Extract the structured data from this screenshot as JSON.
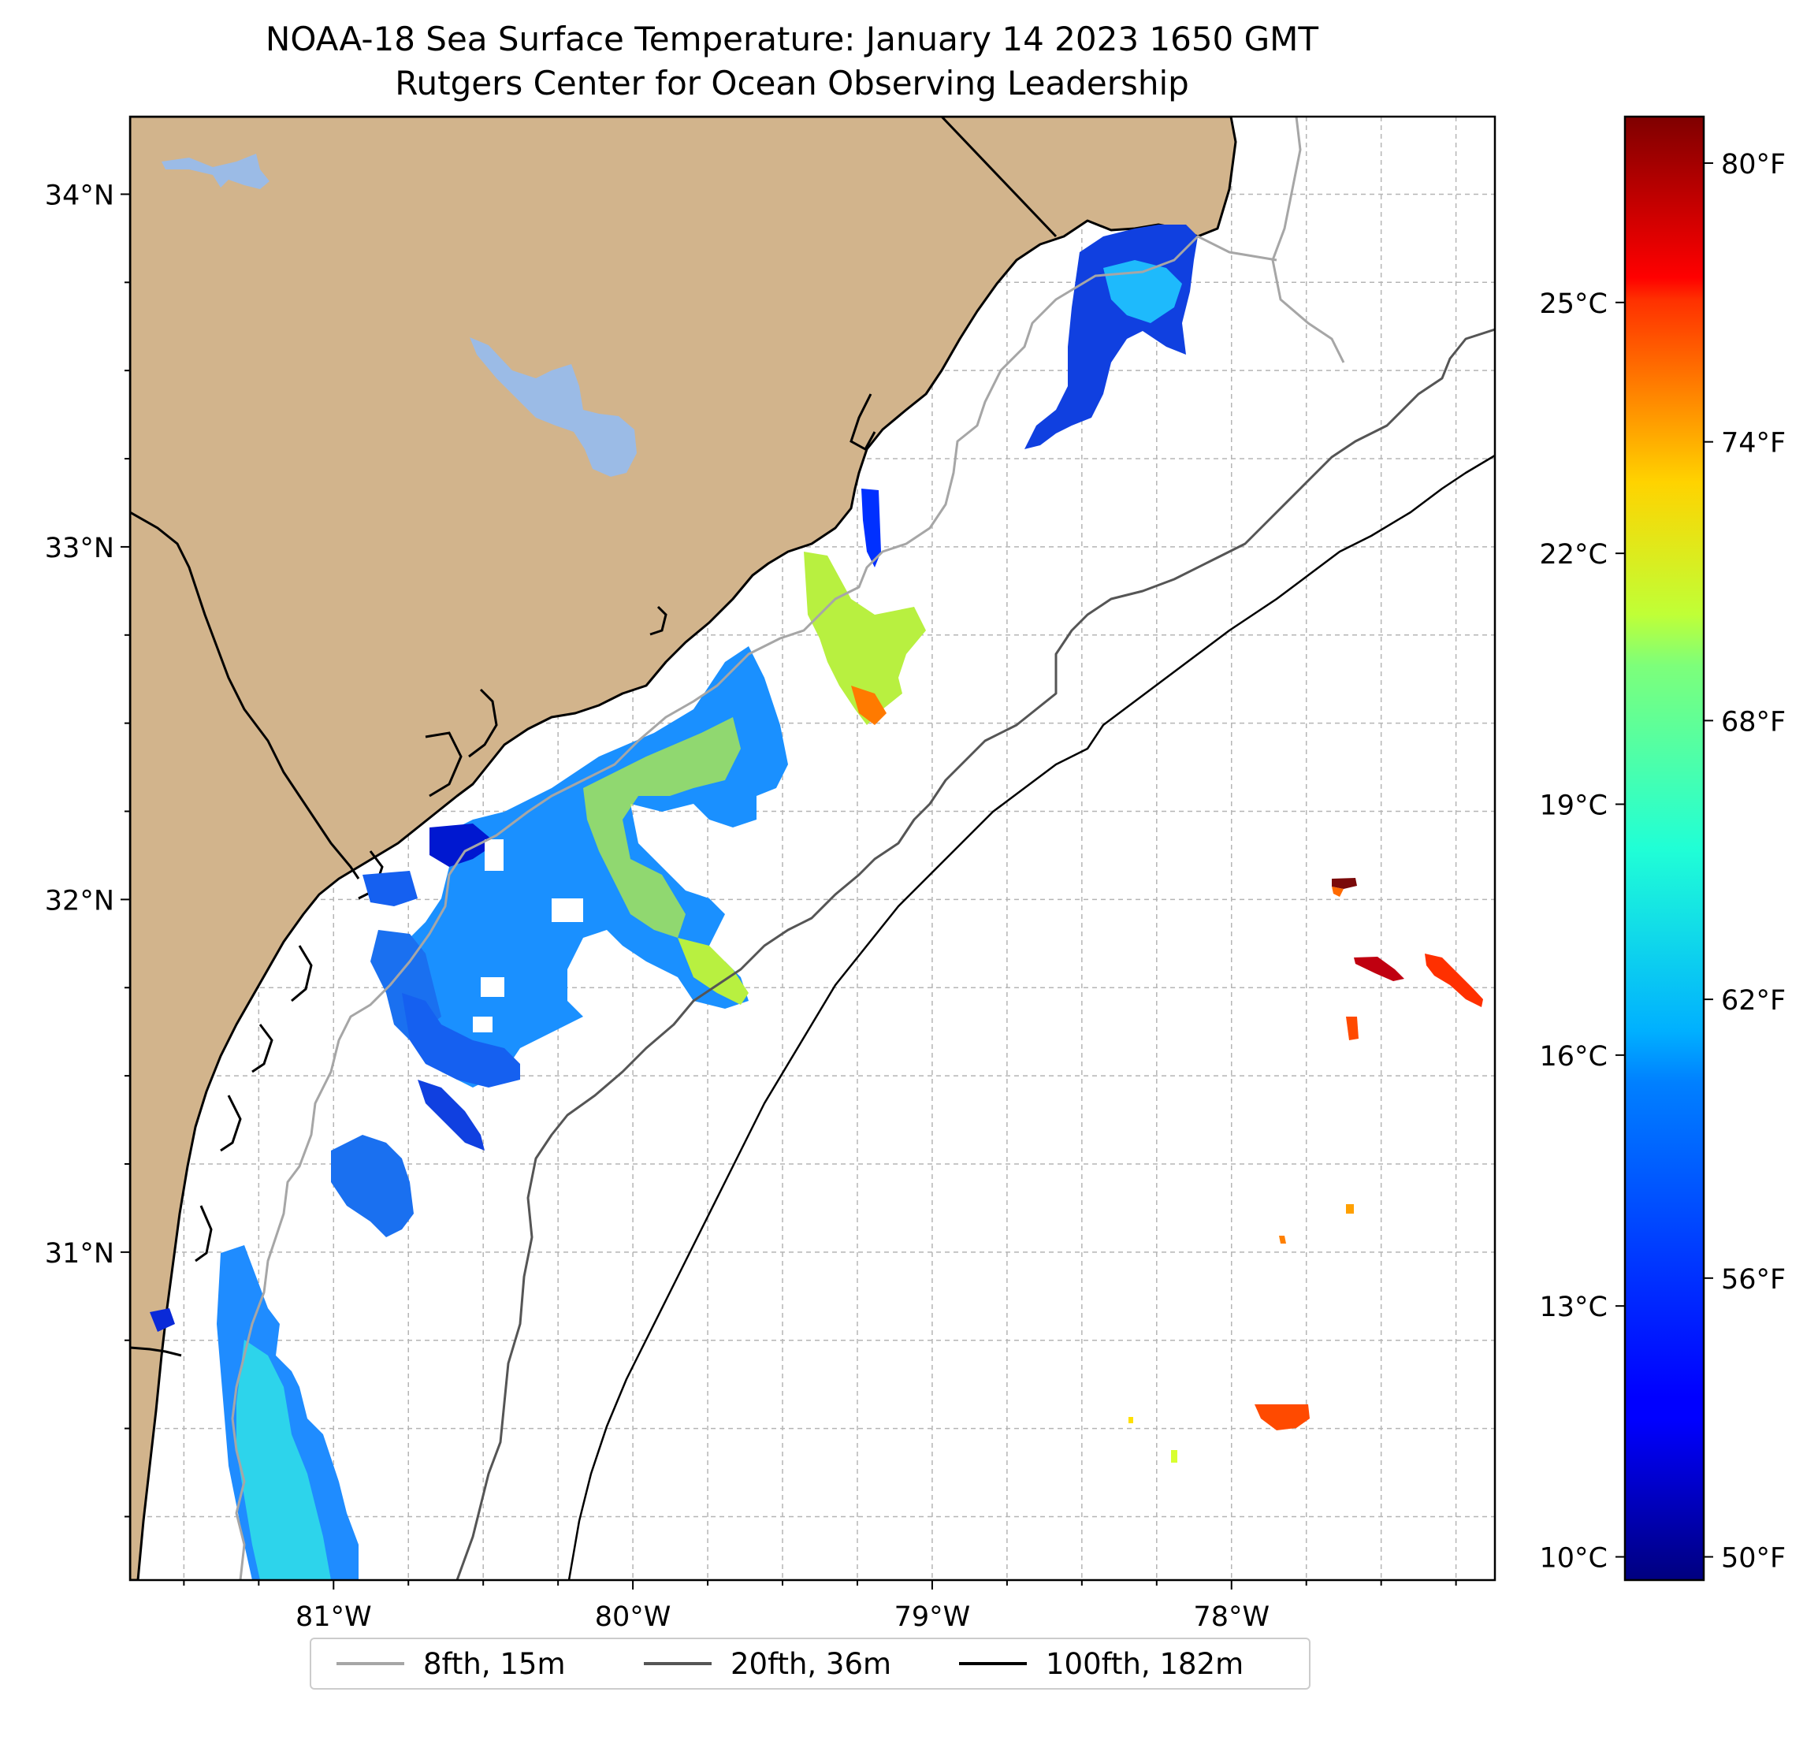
{
  "title": {
    "line1": "NOAA-18 Sea Surface Temperature: January 14 2023 1650 GMT",
    "line2": "Rutgers Center for Ocean Observing Leadership"
  },
  "map": {
    "extent": {
      "lon_min": -81.68,
      "lon_max": -77.12,
      "lat_min": 30.07,
      "lat_max": 34.22
    },
    "lat_ticks": [
      {
        "value": 34,
        "label": "34°N"
      },
      {
        "value": 33,
        "label": "33°N"
      },
      {
        "value": 32,
        "label": "32°N"
      },
      {
        "value": 31,
        "label": "31°N"
      }
    ],
    "lon_ticks": [
      {
        "value": -81,
        "label": "81°W"
      },
      {
        "value": -80,
        "label": "80°W"
      },
      {
        "value": -79,
        "label": "79°W"
      },
      {
        "value": -78,
        "label": "78°W"
      }
    ],
    "gridlines": true,
    "land_color": "#d2b48c",
    "water_color": "#9bbbe6"
  },
  "colorbar": {
    "colormap": "jet",
    "celsius_ticks": [
      {
        "value": 10,
        "label": "10°C"
      },
      {
        "value": 13,
        "label": "13°C"
      },
      {
        "value": 16,
        "label": "16°C"
      },
      {
        "value": 19,
        "label": "19°C"
      },
      {
        "value": 22,
        "label": "22°C"
      },
      {
        "value": 25,
        "label": "25°C"
      }
    ],
    "fahrenheit_ticks": [
      {
        "value": 50,
        "label": "50°F"
      },
      {
        "value": 56,
        "label": "56°F"
      },
      {
        "value": 62,
        "label": "62°F"
      },
      {
        "value": 68,
        "label": "68°F"
      },
      {
        "value": 74,
        "label": "74°F"
      },
      {
        "value": 80,
        "label": "80°F"
      }
    ],
    "range_f": [
      49.5,
      81
    ]
  },
  "legend": {
    "placement": "bottom-center",
    "items": [
      {
        "label": "8fth, 15m",
        "color": "#a6a6a6"
      },
      {
        "label": "20fth, 36m",
        "color": "#555555"
      },
      {
        "label": "100fth, 182m",
        "color": "#000000"
      }
    ]
  }
}
